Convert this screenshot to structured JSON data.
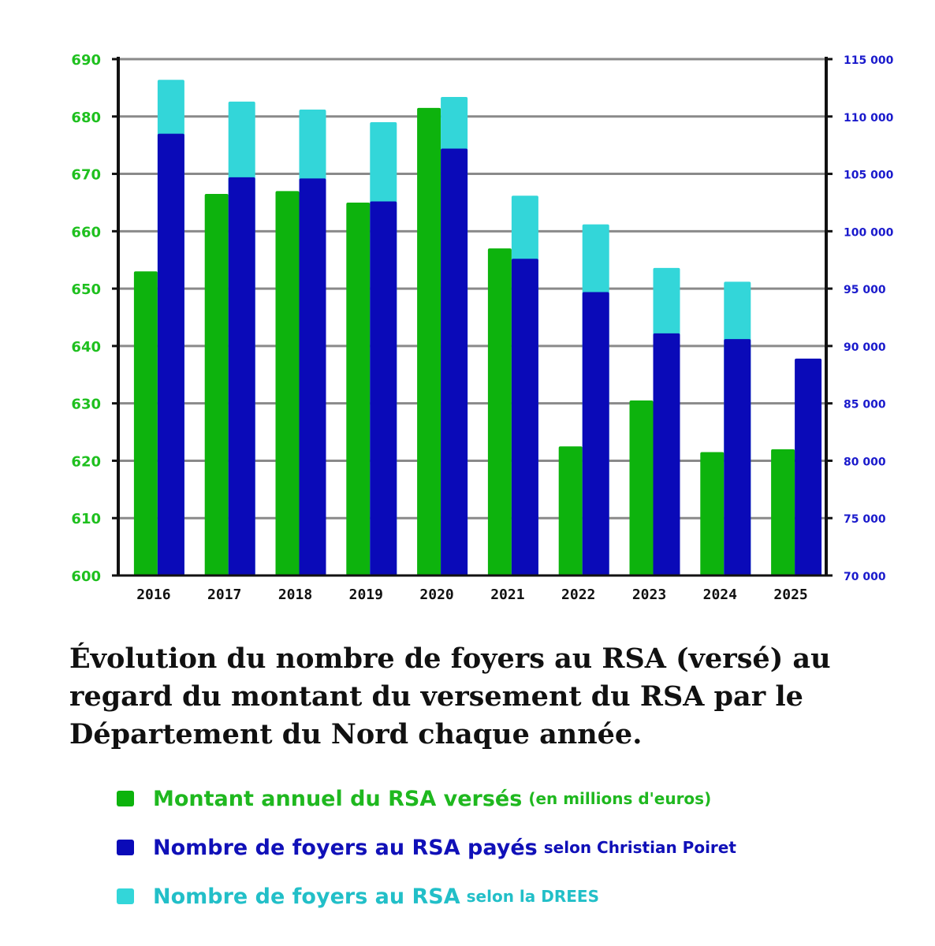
{
  "chart_data": {
    "type": "bar",
    "title": "Évolution du nombre de foyers au RSA (versé) au regard du montant du versement du RSA par le Département du Nord chaque année.",
    "categories": [
      "2016",
      "2017",
      "2018",
      "2019",
      "2020",
      "2021",
      "2022",
      "2023",
      "2024",
      "2025"
    ],
    "y_left": {
      "ylim": [
        600,
        690
      ],
      "ticks": [
        "600",
        "610",
        "620",
        "630",
        "640",
        "650",
        "660",
        "670",
        "680",
        "690"
      ],
      "color": "#1fc01f"
    },
    "y_right": {
      "ylim": [
        70000,
        115000
      ],
      "ticks": [
        "70 000",
        "75 000",
        "80 000",
        "85 000",
        "90 000",
        "95 000",
        "100 000",
        "105 000",
        "110 000",
        "115 000"
      ],
      "color": "#1a1acc"
    },
    "grid": true,
    "legend_placement": "bottom",
    "series": [
      {
        "name": "Montant annuel du RSA versés",
        "name_suffix": "(en millions d'euros)",
        "axis": "left",
        "color": "#0db30d",
        "values": [
          653,
          666.5,
          667,
          665,
          681.5,
          657,
          622.5,
          630.5,
          621.5,
          622
        ]
      },
      {
        "name": "Nombre de foyers au RSA payés",
        "name_suffix": "selon Christian Poiret",
        "axis": "right",
        "color": "#0a0ab8",
        "values": [
          108500,
          104700,
          104600,
          102600,
          107200,
          97600,
          94700,
          91100,
          90600,
          88900
        ]
      },
      {
        "name": "Nombre de foyers au RSA",
        "name_suffix": "selon la DREES",
        "axis": "right",
        "color": "#33d6d9",
        "values": [
          113200,
          111300,
          110600,
          109500,
          111700,
          103100,
          100600,
          96800,
          95600,
          null
        ]
      }
    ]
  }
}
